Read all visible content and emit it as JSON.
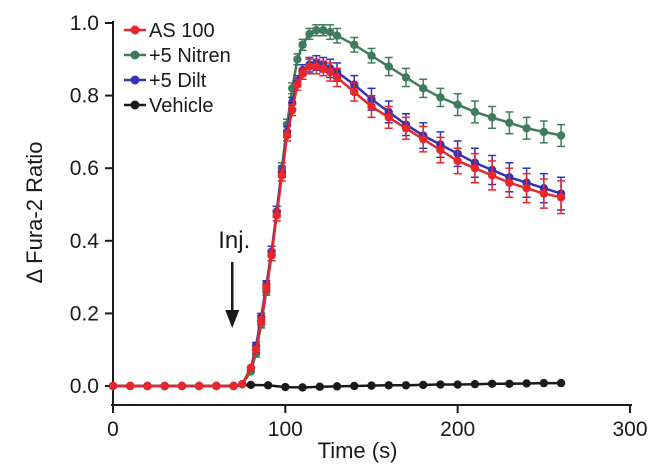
{
  "chart_data": {
    "type": "line",
    "title": "",
    "xlabel": "Time (s)",
    "ylabel": "Δ Fura-2 Ratio",
    "xlim": [
      0,
      300
    ],
    "ylim": [
      0,
      1.0
    ],
    "xticks": [
      0,
      100,
      200,
      300
    ],
    "xtick_labels": [
      "0",
      "100",
      "200",
      "300"
    ],
    "yticks": [
      0,
      0.2,
      0.4,
      0.6,
      0.8,
      1.0
    ],
    "ytick_labels": [
      "0.0",
      "0.2",
      "0.4",
      "0.6",
      "0.8",
      "1.0"
    ],
    "grid": false,
    "legend_position": "top-left",
    "annotation": {
      "text": "Inj.",
      "x": 75,
      "arrow": "down"
    },
    "series": [
      {
        "name": "AS 100",
        "color": "#e8262b",
        "x": [
          0,
          10,
          20,
          30,
          40,
          50,
          60,
          70,
          75,
          80,
          83,
          86,
          89,
          92,
          95,
          98,
          101,
          104,
          107,
          110,
          114,
          118,
          122,
          126,
          130,
          140,
          150,
          160,
          170,
          180,
          190,
          200,
          210,
          220,
          230,
          240,
          250,
          260
        ],
        "y": [
          0,
          0,
          0,
          0,
          0,
          0,
          0,
          0,
          0.005,
          0.05,
          0.1,
          0.18,
          0.27,
          0.36,
          0.47,
          0.58,
          0.69,
          0.76,
          0.83,
          0.86,
          0.88,
          0.88,
          0.875,
          0.865,
          0.85,
          0.81,
          0.77,
          0.74,
          0.71,
          0.68,
          0.65,
          0.62,
          0.6,
          0.58,
          0.56,
          0.545,
          0.53,
          0.52
        ],
        "err": [
          0,
          0,
          0,
          0,
          0,
          0,
          0,
          0,
          0,
          0,
          0.01,
          0.01,
          0.01,
          0.015,
          0.015,
          0.015,
          0.015,
          0.015,
          0.015,
          0.015,
          0.02,
          0.02,
          0.02,
          0.025,
          0.025,
          0.025,
          0.03,
          0.03,
          0.03,
          0.035,
          0.035,
          0.035,
          0.04,
          0.04,
          0.04,
          0.04,
          0.04,
          0.045
        ]
      },
      {
        "name": "+5 Nitren",
        "color": "#3e7c5b",
        "x": [
          0,
          10,
          20,
          30,
          40,
          50,
          60,
          70,
          75,
          80,
          83,
          86,
          89,
          92,
          95,
          98,
          101,
          104,
          107,
          110,
          114,
          118,
          122,
          126,
          130,
          140,
          150,
          160,
          170,
          180,
          190,
          200,
          210,
          220,
          230,
          240,
          250,
          260
        ],
        "y": [
          0,
          0,
          0,
          0,
          0,
          0,
          0,
          0,
          0.005,
          0.04,
          0.09,
          0.17,
          0.26,
          0.36,
          0.48,
          0.6,
          0.72,
          0.82,
          0.9,
          0.94,
          0.97,
          0.98,
          0.98,
          0.975,
          0.965,
          0.94,
          0.91,
          0.88,
          0.85,
          0.82,
          0.795,
          0.775,
          0.755,
          0.74,
          0.725,
          0.71,
          0.7,
          0.69
        ],
        "err": [
          0,
          0,
          0,
          0,
          0,
          0,
          0,
          0,
          0,
          0,
          0.01,
          0.01,
          0.01,
          0.015,
          0.015,
          0.015,
          0.015,
          0.015,
          0.015,
          0.015,
          0.015,
          0.015,
          0.015,
          0.02,
          0.02,
          0.02,
          0.02,
          0.025,
          0.025,
          0.025,
          0.025,
          0.03,
          0.03,
          0.03,
          0.03,
          0.03,
          0.03,
          0.03
        ]
      },
      {
        "name": "+5 Dilt",
        "color": "#3333b3",
        "x": [
          0,
          10,
          20,
          30,
          40,
          50,
          60,
          70,
          75,
          80,
          83,
          86,
          89,
          92,
          95,
          98,
          101,
          104,
          107,
          110,
          114,
          118,
          122,
          126,
          130,
          140,
          150,
          160,
          170,
          180,
          190,
          200,
          210,
          220,
          230,
          240,
          250,
          260
        ],
        "y": [
          0,
          0,
          0,
          0,
          0,
          0,
          0,
          0,
          0.005,
          0.05,
          0.11,
          0.19,
          0.28,
          0.37,
          0.48,
          0.59,
          0.7,
          0.78,
          0.84,
          0.87,
          0.885,
          0.89,
          0.885,
          0.875,
          0.865,
          0.83,
          0.79,
          0.755,
          0.72,
          0.69,
          0.665,
          0.64,
          0.615,
          0.595,
          0.575,
          0.56,
          0.545,
          0.53
        ],
        "err": [
          0,
          0,
          0,
          0,
          0,
          0,
          0,
          0,
          0,
          0,
          0.01,
          0.01,
          0.01,
          0.015,
          0.015,
          0.015,
          0.015,
          0.015,
          0.015,
          0.015,
          0.02,
          0.02,
          0.02,
          0.025,
          0.025,
          0.025,
          0.03,
          0.03,
          0.03,
          0.035,
          0.035,
          0.035,
          0.04,
          0.04,
          0.04,
          0.04,
          0.04,
          0.045
        ]
      },
      {
        "name": "Vehicle",
        "color": "#1a1a1a",
        "x": [
          0,
          10,
          20,
          30,
          40,
          50,
          60,
          70,
          80,
          90,
          100,
          110,
          120,
          130,
          140,
          150,
          160,
          170,
          180,
          190,
          200,
          210,
          220,
          230,
          240,
          250,
          260
        ],
        "y": [
          0,
          0,
          0,
          0,
          0,
          0,
          0,
          0,
          0.003,
          0.002,
          -0.003,
          -0.004,
          -0.002,
          -0.001,
          0,
          0.001,
          0.002,
          0.002,
          0.003,
          0.004,
          0.004,
          0.005,
          0.006,
          0.006,
          0.007,
          0.008,
          0.008
        ],
        "err": [
          0,
          0,
          0,
          0,
          0,
          0,
          0,
          0,
          0,
          0,
          0,
          0,
          0,
          0,
          0,
          0,
          0,
          0,
          0,
          0,
          0,
          0,
          0,
          0,
          0,
          0,
          0
        ]
      }
    ]
  }
}
